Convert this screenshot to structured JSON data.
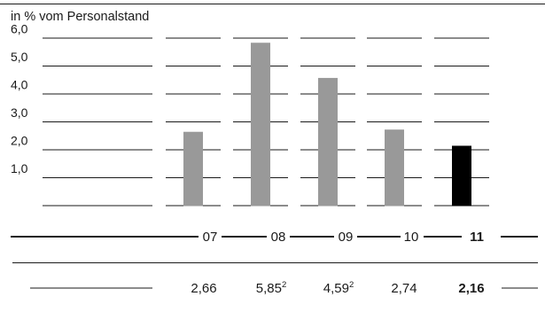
{
  "chart_data": {
    "type": "bar",
    "unit_label": "in % vom Personalstand",
    "categories": [
      "07",
      "08",
      "09",
      "10",
      "11"
    ],
    "values": [
      2.66,
      5.85,
      4.59,
      2.74,
      2.16
    ],
    "value_labels": [
      "2,66",
      "5,85",
      "4,59",
      "2,74",
      "2,16"
    ],
    "value_footnotes": [
      "",
      "2",
      "2",
      "",
      ""
    ],
    "highlight_index": 4,
    "y_ticks": [
      "6,0",
      "5,0",
      "4,0",
      "3,0",
      "2,0",
      "1,0"
    ],
    "ylim": [
      0,
      7
    ],
    "colors": {
      "bar": "#999999",
      "highlight": "#000000",
      "lines": "#1a1a1a"
    },
    "grid": true
  }
}
